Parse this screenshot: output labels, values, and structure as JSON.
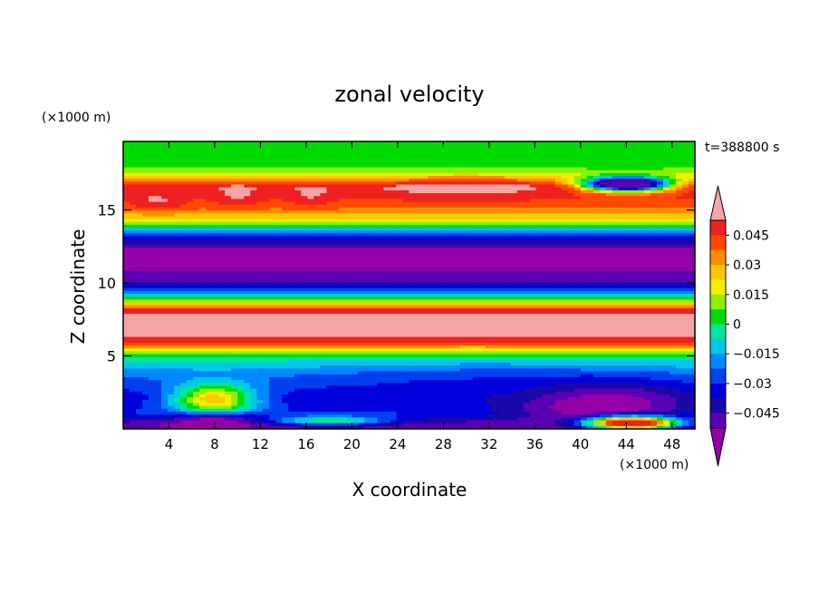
{
  "chart_data": {
    "type": "heatmap",
    "title": "zonal velocity",
    "xlabel": "X coordinate",
    "ylabel": "Z coordinate",
    "x_unit_label": "(×1000 m)",
    "y_unit_label": "(×1000 m)",
    "time_label": "t=388800 s",
    "xlim": [
      0,
      50
    ],
    "ylim": [
      0,
      19.7
    ],
    "x_ticks": [
      4,
      8,
      12,
      16,
      20,
      24,
      28,
      32,
      36,
      40,
      44,
      48
    ],
    "y_ticks": [
      5,
      10,
      15
    ],
    "colorbar": {
      "levels": [
        -0.0525,
        -0.045,
        -0.0375,
        -0.03,
        -0.0225,
        -0.015,
        -0.0075,
        0,
        0.0075,
        0.015,
        0.0225,
        0.03,
        0.0375,
        0.045,
        0.0525
      ],
      "colors": [
        "#9300a8",
        "#5a00b4",
        "#1a08a8",
        "#0000dc",
        "#0040f0",
        "#0088ff",
        "#00c8e6",
        "#00e6a0",
        "#00dc00",
        "#8cf000",
        "#f0f000",
        "#ffc800",
        "#ff8c00",
        "#ff4800",
        "#f02020",
        "#f5a5a5"
      ],
      "tick_labels": [
        "0.045",
        "0.03",
        "0.015",
        "0",
        "−0.015",
        "−0.03",
        "−0.045"
      ],
      "tick_values": [
        0.045,
        0.03,
        0.015,
        0,
        -0.015,
        -0.03,
        -0.045
      ]
    },
    "layers": [
      {
        "z": 0.3,
        "u": -0.05
      },
      {
        "z": 1.0,
        "u": -0.03
      },
      {
        "z": 2.2,
        "u": -0.035
      },
      {
        "z": 3.8,
        "u": -0.02
      },
      {
        "z": 4.6,
        "u": -0.008
      },
      {
        "z": 5.4,
        "u": 0.02
      },
      {
        "z": 6.0,
        "u": 0.05
      },
      {
        "z": 7.5,
        "u": 0.06
      },
      {
        "z": 8.1,
        "u": 0.05
      },
      {
        "z": 8.9,
        "u": 0.005
      },
      {
        "z": 9.5,
        "u": -0.025
      },
      {
        "z": 10.2,
        "u": -0.05
      },
      {
        "z": 12.2,
        "u": -0.058
      },
      {
        "z": 12.9,
        "u": -0.04
      },
      {
        "z": 13.6,
        "u": -0.012
      },
      {
        "z": 14.3,
        "u": 0.02
      },
      {
        "z": 15.2,
        "u": 0.04
      },
      {
        "z": 16.1,
        "u": 0.048
      },
      {
        "z": 16.6,
        "u": 0.052
      },
      {
        "z": 17.1,
        "u": 0.03
      },
      {
        "z": 17.8,
        "u": 0.008
      },
      {
        "z": 19.7,
        "u": 0.002
      }
    ],
    "features": [
      {
        "x": 8,
        "z": 2.0,
        "rx": 4.5,
        "rz": 1.4,
        "u": 0.035,
        "k": 0.9
      },
      {
        "x": 41.5,
        "z": 1.6,
        "rx": 9,
        "rz": 1.9,
        "u": -0.06,
        "k": 1.1
      },
      {
        "x": 30,
        "z": 3.0,
        "rx": 14,
        "rz": 1.6,
        "u": -0.035,
        "k": 0.6
      },
      {
        "x": 8,
        "z": 0.5,
        "rx": 5,
        "rz": 0.7,
        "u": -0.07,
        "k": 0.8
      },
      {
        "x": 44.5,
        "z": 0.4,
        "rx": 5,
        "rz": 0.55,
        "u": 0.05,
        "k": 1.2
      },
      {
        "x": 18,
        "z": 0.55,
        "rx": 6,
        "rz": 0.4,
        "u": 0.03,
        "k": 0.6
      },
      {
        "x": 44,
        "z": 16.8,
        "rx": 4.5,
        "rz": 0.6,
        "u": -0.05,
        "k": 1.4
      },
      {
        "x": 30,
        "z": 16.5,
        "rx": 8,
        "rz": 0.8,
        "u": 0.06,
        "k": 0.6
      },
      {
        "x": 3,
        "z": 15.6,
        "rx": 2.5,
        "rz": 0.8,
        "u": 0.06,
        "k": 0.6
      },
      {
        "x": 10,
        "z": 16.0,
        "rx": 2.2,
        "rz": 0.9,
        "u": 0.06,
        "k": 0.6
      },
      {
        "x": 16.5,
        "z": 16.0,
        "rx": 2.2,
        "rz": 0.9,
        "u": 0.06,
        "k": 0.5
      }
    ]
  }
}
